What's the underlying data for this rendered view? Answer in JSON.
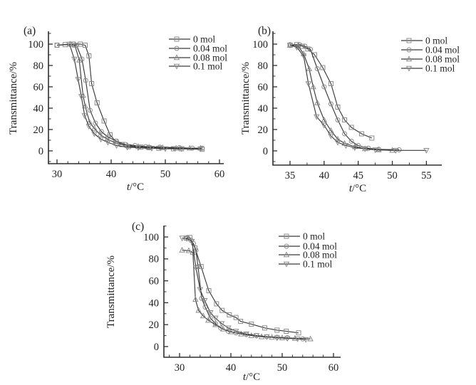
{
  "figure": {
    "background": "#ffffff",
    "line_color": "#3a3a3a",
    "marker_color": "#8c8c8c",
    "axis_color": "#2e2e2e",
    "text_color": "#1f1f1f"
  },
  "chart_data": [
    {
      "panel": "a",
      "panel_label": "(a)",
      "type": "line",
      "xlabel": "t/°C",
      "ylabel": "Transmittance/%",
      "xticks": [
        30,
        40,
        50,
        60
      ],
      "x_minor_step": 2,
      "yticks": [
        0,
        20,
        40,
        60,
        80,
        100
      ],
      "y_minor_step": 10,
      "xlim": [
        28.4,
        60.8
      ],
      "ylim": [
        -12,
        112
      ],
      "grid": false,
      "legend_position": "top-right",
      "series": [
        {
          "name": "0 mol",
          "marker": "square",
          "points": [
            [
              30,
              99
            ],
            [
              31.5,
              99.5
            ],
            [
              33,
              100
            ],
            [
              34.3,
              100
            ],
            [
              35.2,
              99
            ],
            [
              35.9,
              89
            ],
            [
              36.4,
              63
            ],
            [
              37.4,
              45
            ],
            [
              38.7,
              28
            ],
            [
              39.8,
              15
            ],
            [
              40.8,
              9
            ],
            [
              42,
              6
            ],
            [
              43.2,
              4
            ],
            [
              45.5,
              3.5
            ],
            [
              47,
              3
            ],
            [
              48.8,
              2.5
            ],
            [
              51.5,
              2
            ],
            [
              53,
              2
            ],
            [
              56.8,
              1.5
            ]
          ]
        },
        {
          "name": "0.04 mol",
          "marker": "circle",
          "points": [
            [
              30,
              99
            ],
            [
              32.6,
              100
            ],
            [
              33.6,
              99
            ],
            [
              34.6,
              86
            ],
            [
              35.3,
              66
            ],
            [
              36.1,
              38
            ],
            [
              37.1,
              26
            ],
            [
              38.2,
              18
            ],
            [
              39.4,
              13
            ],
            [
              41,
              9
            ],
            [
              42.6,
              6
            ],
            [
              44.4,
              5
            ],
            [
              46.4,
              4
            ],
            [
              49,
              3.5
            ],
            [
              52.6,
              3
            ],
            [
              55,
              2.5
            ],
            [
              56.8,
              2.5
            ]
          ]
        },
        {
          "name": "0.08 mol",
          "marker": "triangle-up",
          "points": [
            [
              32.4,
              100
            ],
            [
              33.3,
              99
            ],
            [
              34.1,
              85
            ],
            [
              34.8,
              52
            ],
            [
              35.2,
              42
            ],
            [
              36,
              27
            ],
            [
              36.9,
              21
            ],
            [
              38,
              15
            ],
            [
              39.3,
              11
            ],
            [
              41,
              7
            ],
            [
              43,
              5
            ],
            [
              45,
              4
            ],
            [
              47,
              3.5
            ],
            [
              49.5,
              3
            ],
            [
              52,
              2.5
            ],
            [
              54.5,
              2.5
            ],
            [
              56.5,
              2.5
            ]
          ]
        },
        {
          "name": "0.1 mol",
          "marker": "triangle-down",
          "points": [
            [
              32.3,
              100
            ],
            [
              33.2,
              86
            ],
            [
              33.9,
              67
            ],
            [
              34.5,
              51
            ],
            [
              35.1,
              33
            ],
            [
              35.9,
              23
            ],
            [
              36.9,
              16
            ],
            [
              38.1,
              11
            ],
            [
              39.4,
              8
            ],
            [
              41,
              5
            ],
            [
              43,
              3.5
            ],
            [
              45,
              3
            ],
            [
              47.5,
              2.5
            ],
            [
              50,
              2
            ],
            [
              53,
              2
            ],
            [
              56.5,
              2
            ]
          ]
        }
      ]
    },
    {
      "panel": "b",
      "panel_label": "(b)",
      "type": "line",
      "xlabel": "t/°C",
      "ylabel": "Transmittance/%",
      "xticks": [
        35,
        40,
        45,
        50,
        55
      ],
      "x_minor_step": 2.5,
      "yticks": [
        0,
        20,
        40,
        60,
        80,
        100
      ],
      "y_minor_step": 10,
      "xlim": [
        32.5,
        57.3
      ],
      "ylim": [
        -13,
        112
      ],
      "grid": false,
      "legend_position": "top-right",
      "series": [
        {
          "name": "0 mol",
          "marker": "square",
          "points": [
            [
              35,
              99
            ],
            [
              36,
              99.5
            ],
            [
              36.8,
              98
            ],
            [
              37.6,
              95.5
            ],
            [
              38.6,
              90
            ],
            [
              39.8,
              78
            ],
            [
              41,
              63
            ],
            [
              42,
              41
            ],
            [
              43,
              29
            ],
            [
              44,
              22
            ],
            [
              45.5,
              16
            ],
            [
              47,
              12
            ]
          ]
        },
        {
          "name": "0.04 mol",
          "marker": "circle",
          "points": [
            [
              35,
              99.5
            ],
            [
              36.4,
              99.5
            ],
            [
              37.2,
              98
            ],
            [
              38,
              95
            ],
            [
              39,
              77
            ],
            [
              40,
              60
            ],
            [
              41,
              44
            ],
            [
              42,
              29
            ],
            [
              43,
              16
            ],
            [
              44,
              9
            ],
            [
              45,
              5
            ],
            [
              46.5,
              2.5
            ],
            [
              48,
              1.5
            ],
            [
              51,
              1
            ]
          ]
        },
        {
          "name": "0.08 mol",
          "marker": "triangle-up",
          "points": [
            [
              35,
              99
            ],
            [
              36.2,
              98
            ],
            [
              37,
              91
            ],
            [
              37.8,
              77
            ],
            [
              38.4,
              60
            ],
            [
              39,
              45
            ],
            [
              40,
              29
            ],
            [
              41,
              19
            ],
            [
              42,
              11
            ],
            [
              43,
              7
            ],
            [
              44.5,
              4
            ],
            [
              46,
              2
            ],
            [
              48,
              1
            ],
            [
              50,
              0.5
            ]
          ]
        },
        {
          "name": "0.1 mol",
          "marker": "triangle-down",
          "points": [
            [
              35,
              99
            ],
            [
              36,
              97
            ],
            [
              37,
              89
            ],
            [
              37.7,
              63
            ],
            [
              38.9,
              32
            ],
            [
              40,
              24
            ],
            [
              41,
              14
            ],
            [
              42,
              8
            ],
            [
              43.2,
              5
            ],
            [
              44.5,
              3
            ],
            [
              46,
              2
            ],
            [
              47.5,
              1
            ],
            [
              50.5,
              0.5
            ],
            [
              55,
              0.5
            ]
          ]
        }
      ]
    },
    {
      "panel": "c",
      "panel_label": "(c)",
      "type": "line",
      "xlabel": "t/°C",
      "ylabel": "Transmittance/%",
      "xticks": [
        30,
        40,
        50,
        60
      ],
      "x_minor_step": 2,
      "yticks": [
        0,
        20,
        40,
        60,
        80,
        100
      ],
      "y_minor_step": 10,
      "xlim": [
        27,
        61.4
      ],
      "ylim": [
        -10,
        110
      ],
      "grid": false,
      "legend_position": "top-right",
      "series": [
        {
          "name": "0 mol",
          "marker": "square",
          "points": [
            [
              31.3,
              99
            ],
            [
              32,
              99.5
            ],
            [
              33,
              90
            ],
            [
              34.2,
              73
            ],
            [
              35.7,
              51
            ],
            [
              37.2,
              39
            ],
            [
              38.3,
              33
            ],
            [
              39.7,
              29
            ],
            [
              41,
              26.5
            ],
            [
              41.9,
              23
            ],
            [
              44,
              20.5
            ],
            [
              46.6,
              17
            ],
            [
              49,
              15
            ],
            [
              50.8,
              14
            ],
            [
              53.2,
              12.5
            ]
          ]
        },
        {
          "name": "0.04 mol",
          "marker": "circle",
          "points": [
            [
              31.5,
              99.5
            ],
            [
              32.2,
              97
            ],
            [
              32.7,
              94
            ],
            [
              33.2,
              88
            ],
            [
              33.6,
              73
            ],
            [
              34.3,
              44
            ],
            [
              35,
              36
            ],
            [
              36,
              26
            ],
            [
              37,
              21
            ],
            [
              38,
              17
            ],
            [
              39.5,
              14
            ],
            [
              41,
              12.5
            ],
            [
              43,
              11
            ],
            [
              45,
              10
            ],
            [
              47,
              9
            ],
            [
              49,
              8.5
            ],
            [
              51,
              8
            ],
            [
              54,
              7
            ]
          ]
        },
        {
          "name": "0.08 mol",
          "marker": "triangle-up",
          "points": [
            [
              30.5,
              88
            ],
            [
              31.8,
              87.5
            ],
            [
              32.6,
              86
            ],
            [
              33.1,
              43
            ],
            [
              33.7,
              33
            ],
            [
              34.6,
              28
            ],
            [
              35.6,
              24
            ],
            [
              37,
              20
            ],
            [
              38.5,
              16
            ],
            [
              40,
              13.5
            ],
            [
              42,
              11.5
            ],
            [
              44,
              10
            ],
            [
              46,
              9
            ],
            [
              48,
              8.5
            ],
            [
              50,
              8
            ],
            [
              52.5,
              7.5
            ],
            [
              55.5,
              7
            ]
          ]
        },
        {
          "name": "0.1 mol",
          "marker": "triangle-down",
          "points": [
            [
              30.5,
              99
            ],
            [
              31.4,
              98.5
            ],
            [
              32.4,
              96
            ],
            [
              33.2,
              72
            ],
            [
              34,
              52
            ],
            [
              34.9,
              42
            ],
            [
              36,
              31
            ],
            [
              37,
              26
            ],
            [
              38.2,
              21
            ],
            [
              39.5,
              17
            ],
            [
              41,
              14
            ],
            [
              43,
              11.5
            ],
            [
              45,
              10
            ],
            [
              47,
              9
            ],
            [
              49,
              8
            ],
            [
              51,
              7.5
            ],
            [
              53,
              7
            ],
            [
              54.6,
              6.5
            ]
          ]
        }
      ]
    }
  ]
}
